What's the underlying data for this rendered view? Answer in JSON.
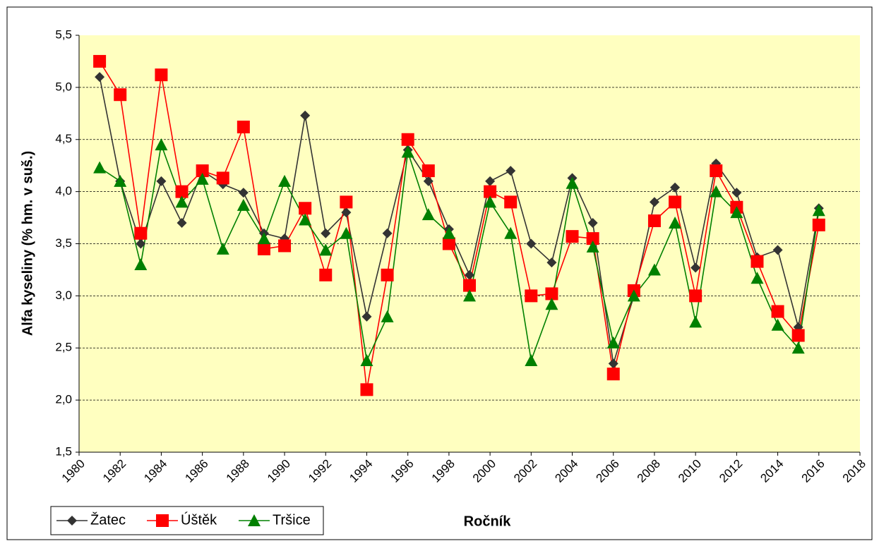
{
  "chart_data": {
    "type": "line",
    "y_label": "Alfa kyseliny (% hm. v suš.)",
    "x_label": "Ročník",
    "x": [
      1981,
      1982,
      1983,
      1984,
      1985,
      1986,
      1987,
      1988,
      1989,
      1990,
      1991,
      1992,
      1993,
      1994,
      1995,
      1996,
      1997,
      1998,
      1999,
      2000,
      2001,
      2002,
      2003,
      2004,
      2005,
      2006,
      2007,
      2008,
      2009,
      2010,
      2011,
      2012,
      2013,
      2014,
      2015,
      2016
    ],
    "series": [
      {
        "name": "Žatec",
        "color": "#333333",
        "marker": "diamond",
        "values": [
          5.1,
          4.1,
          3.5,
          4.1,
          3.7,
          4.2,
          4.07,
          3.99,
          3.6,
          3.55,
          4.73,
          3.6,
          3.8,
          2.8,
          3.6,
          4.4,
          4.1,
          3.64,
          3.2,
          4.1,
          4.2,
          3.5,
          3.32,
          4.13,
          3.7,
          2.35,
          3.0,
          3.9,
          4.04,
          3.27,
          4.27,
          3.99,
          3.37,
          3.44,
          2.7,
          3.84
        ]
      },
      {
        "name": "Úštěk",
        "color": "#ff0000",
        "marker": "square",
        "values": [
          5.25,
          4.93,
          3.6,
          5.12,
          4.0,
          4.2,
          4.13,
          4.62,
          3.45,
          3.48,
          3.84,
          3.2,
          3.9,
          2.1,
          3.2,
          4.5,
          4.2,
          3.5,
          3.1,
          4.0,
          3.9,
          3.0,
          3.02,
          3.57,
          3.55,
          2.25,
          3.05,
          3.72,
          3.9,
          3.0,
          4.2,
          3.85,
          3.33,
          2.85,
          2.62,
          3.68
        ]
      },
      {
        "name": "Tršice",
        "color": "#008000",
        "marker": "triangle",
        "values": [
          4.23,
          4.1,
          3.3,
          4.45,
          3.9,
          4.12,
          3.45,
          3.87,
          3.55,
          4.1,
          3.73,
          3.44,
          3.6,
          2.38,
          2.8,
          4.38,
          3.78,
          3.6,
          3.0,
          3.9,
          3.6,
          2.38,
          2.92,
          4.08,
          3.47,
          2.55,
          3.0,
          3.25,
          3.7,
          2.75,
          4.0,
          3.8,
          3.17,
          2.72,
          2.5,
          3.82
        ]
      }
    ],
    "xlim": [
      1980,
      2018
    ],
    "xticks": [
      1980,
      1982,
      1984,
      1986,
      1988,
      1990,
      1992,
      1994,
      1996,
      1998,
      2000,
      2002,
      2004,
      2006,
      2008,
      2010,
      2012,
      2014,
      2016,
      2018
    ],
    "ylim": [
      1.5,
      5.5
    ],
    "yticks": [
      {
        "value": 1.5,
        "label": "1,5"
      },
      {
        "value": 2,
        "label": "2,0"
      },
      {
        "value": 2.5,
        "label": "2,5"
      },
      {
        "value": 3,
        "label": "3,0"
      },
      {
        "value": 3.5,
        "label": "3,5"
      },
      {
        "value": 4,
        "label": "4,0"
      },
      {
        "value": 4.5,
        "label": "4,5"
      },
      {
        "value": 5,
        "label": "5,0"
      },
      {
        "value": 5.5,
        "label": "5,5"
      }
    ],
    "grid": true,
    "legend": "bottom-left"
  }
}
